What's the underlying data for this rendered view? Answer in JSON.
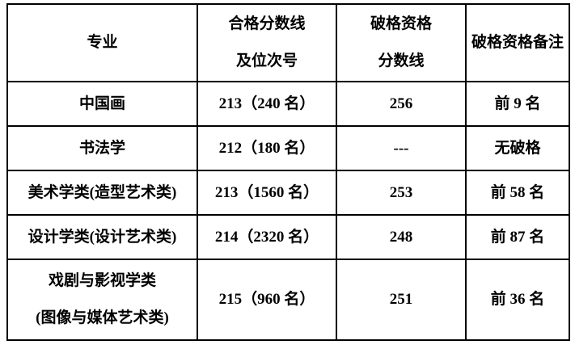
{
  "colors": {
    "border": "#000000",
    "text": "#000000",
    "background": "#ffffff"
  },
  "table": {
    "headers": {
      "major": "专业",
      "pass_score_line1": "合格分数线",
      "pass_score_line2": "及位次号",
      "exception_score_line1": "破格资格",
      "exception_score_line2": "分数线",
      "exception_note": "破格资格备注"
    },
    "rows": [
      {
        "major_line1": "中国画",
        "major_line2": "",
        "pass_score": "213（240 名）",
        "exception_score": "256",
        "exception_note": "前 9 名"
      },
      {
        "major_line1": "书法学",
        "major_line2": "",
        "pass_score": "212（180 名）",
        "exception_score": "---",
        "exception_note": "无破格"
      },
      {
        "major_line1": "美术学类(造型艺术类)",
        "major_line2": "",
        "pass_score": "213（1560 名）",
        "exception_score": "253",
        "exception_note": "前 58 名"
      },
      {
        "major_line1": "设计学类(设计艺术类)",
        "major_line2": "",
        "pass_score": "214（2320 名）",
        "exception_score": "248",
        "exception_note": "前 87 名"
      },
      {
        "major_line1": "戏剧与影视学类",
        "major_line2": "(图像与媒体艺术类)",
        "pass_score": "215（960 名）",
        "exception_score": "251",
        "exception_note": "前 36 名"
      }
    ]
  }
}
